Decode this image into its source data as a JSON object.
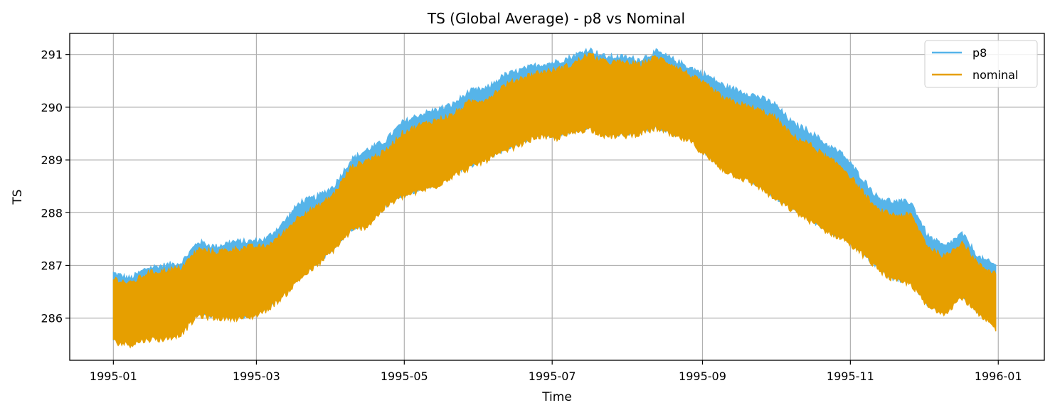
{
  "chart_data": {
    "type": "line",
    "title": "TS (Global Average) - p8 vs Nominal",
    "xlabel": "Time",
    "ylabel": "TS",
    "x_range": [
      "1994-12-14",
      "1996-01-20"
    ],
    "ylim": [
      285.2,
      291.4
    ],
    "grid": true,
    "legend_position": "top-right",
    "x_ticks": [
      {
        "date": "1995-01-01",
        "label": "1995-01"
      },
      {
        "date": "1995-03-01",
        "label": "1995-03"
      },
      {
        "date": "1995-05-01",
        "label": "1995-05"
      },
      {
        "date": "1995-07-01",
        "label": "1995-07"
      },
      {
        "date": "1995-09-01",
        "label": "1995-09"
      },
      {
        "date": "1995-11-01",
        "label": "1995-11"
      },
      {
        "date": "1996-01-01",
        "label": "1996-01"
      }
    ],
    "y_ticks": [
      {
        "value": 286,
        "label": "286"
      },
      {
        "value": 287,
        "label": "287"
      },
      {
        "value": 288,
        "label": "288"
      },
      {
        "value": 289,
        "label": "289"
      },
      {
        "value": 290,
        "label": "290"
      },
      {
        "value": 291,
        "label": "291"
      }
    ],
    "series": [
      {
        "name": "p8",
        "color": "#56B4E9",
        "note": "Diurnal envelope: upper/lower bounds at weekly samples",
        "dates": [
          "1995-01-01",
          "1995-01-08",
          "1995-01-15",
          "1995-01-22",
          "1995-01-29",
          "1995-02-05",
          "1995-02-12",
          "1995-02-19",
          "1995-02-26",
          "1995-03-05",
          "1995-03-12",
          "1995-03-19",
          "1995-03-26",
          "1995-04-02",
          "1995-04-09",
          "1995-04-16",
          "1995-04-23",
          "1995-04-30",
          "1995-05-07",
          "1995-05-14",
          "1995-05-21",
          "1995-05-28",
          "1995-06-04",
          "1995-06-11",
          "1995-06-18",
          "1995-06-25",
          "1995-07-02",
          "1995-07-09",
          "1995-07-16",
          "1995-07-23",
          "1995-07-30",
          "1995-08-06",
          "1995-08-13",
          "1995-08-20",
          "1995-08-27",
          "1995-09-03",
          "1995-09-10",
          "1995-09-17",
          "1995-09-24",
          "1995-10-01",
          "1995-10-08",
          "1995-10-15",
          "1995-10-22",
          "1995-10-29",
          "1995-11-05",
          "1995-11-12",
          "1995-11-19",
          "1995-11-26",
          "1995-12-03",
          "1995-12-10",
          "1995-12-17",
          "1995-12-24",
          "1995-12-31"
        ],
        "upper": [
          286.85,
          286.75,
          286.95,
          287.0,
          287.05,
          287.45,
          287.35,
          287.45,
          287.45,
          287.5,
          287.8,
          288.2,
          288.3,
          288.5,
          289.0,
          289.2,
          289.35,
          289.7,
          289.85,
          289.95,
          290.05,
          290.3,
          290.35,
          290.6,
          290.7,
          290.8,
          290.85,
          290.95,
          291.1,
          290.95,
          290.95,
          290.9,
          291.05,
          290.9,
          290.75,
          290.6,
          290.4,
          290.3,
          290.2,
          290.05,
          289.7,
          289.55,
          289.3,
          289.1,
          288.7,
          288.3,
          288.2,
          288.2,
          287.55,
          287.35,
          287.6,
          287.15,
          287.0
        ],
        "lower": [
          285.6,
          285.55,
          285.7,
          285.65,
          285.8,
          286.1,
          286.05,
          286.05,
          286.05,
          286.2,
          286.5,
          286.85,
          287.05,
          287.35,
          287.7,
          287.8,
          288.15,
          288.35,
          288.45,
          288.55,
          288.75,
          288.9,
          289.05,
          289.2,
          289.35,
          289.5,
          289.45,
          289.55,
          289.65,
          289.5,
          289.5,
          289.55,
          289.65,
          289.5,
          289.4,
          289.1,
          288.85,
          288.7,
          288.55,
          288.3,
          288.1,
          287.9,
          287.7,
          287.55,
          287.3,
          287.0,
          286.75,
          286.7,
          286.25,
          286.15,
          286.45,
          286.1,
          285.85
        ]
      },
      {
        "name": "nominal",
        "color": "#E69F00",
        "note": "Diurnal envelope: upper/lower bounds at weekly samples",
        "dates": [
          "1995-01-01",
          "1995-01-08",
          "1995-01-15",
          "1995-01-22",
          "1995-01-29",
          "1995-02-05",
          "1995-02-12",
          "1995-02-19",
          "1995-02-26",
          "1995-03-05",
          "1995-03-12",
          "1995-03-19",
          "1995-03-26",
          "1995-04-02",
          "1995-04-09",
          "1995-04-16",
          "1995-04-23",
          "1995-04-30",
          "1995-05-07",
          "1995-05-14",
          "1995-05-21",
          "1995-05-28",
          "1995-06-04",
          "1995-06-11",
          "1995-06-18",
          "1995-06-25",
          "1995-07-02",
          "1995-07-09",
          "1995-07-16",
          "1995-07-23",
          "1995-07-30",
          "1995-08-06",
          "1995-08-13",
          "1995-08-20",
          "1995-08-27",
          "1995-09-03",
          "1995-09-10",
          "1995-09-17",
          "1995-09-24",
          "1995-10-01",
          "1995-10-08",
          "1995-10-15",
          "1995-10-22",
          "1995-10-29",
          "1995-11-05",
          "1995-11-12",
          "1995-11-19",
          "1995-11-26",
          "1995-12-03",
          "1995-12-10",
          "1995-12-17",
          "1995-12-24",
          "1995-12-31"
        ],
        "upper": [
          286.75,
          286.65,
          286.85,
          286.9,
          286.95,
          287.3,
          287.25,
          287.3,
          287.35,
          287.35,
          287.6,
          287.95,
          288.1,
          288.35,
          288.85,
          289.0,
          289.15,
          289.5,
          289.65,
          289.75,
          289.85,
          290.1,
          290.15,
          290.4,
          290.55,
          290.65,
          290.7,
          290.8,
          291.0,
          290.85,
          290.85,
          290.8,
          290.95,
          290.8,
          290.6,
          290.4,
          290.15,
          290.05,
          289.95,
          289.8,
          289.45,
          289.3,
          289.05,
          288.85,
          288.45,
          288.05,
          287.95,
          287.95,
          287.35,
          287.15,
          287.45,
          287.0,
          286.85
        ],
        "lower": [
          285.55,
          285.5,
          285.6,
          285.6,
          285.7,
          286.05,
          286.0,
          286.0,
          286.0,
          286.15,
          286.4,
          286.75,
          287.0,
          287.3,
          287.65,
          287.75,
          288.1,
          288.3,
          288.4,
          288.5,
          288.7,
          288.85,
          289.0,
          289.15,
          289.3,
          289.45,
          289.4,
          289.5,
          289.6,
          289.45,
          289.45,
          289.5,
          289.6,
          289.45,
          289.35,
          289.05,
          288.8,
          288.65,
          288.5,
          288.25,
          288.05,
          287.85,
          287.65,
          287.5,
          287.25,
          286.95,
          286.7,
          286.65,
          286.2,
          286.1,
          286.4,
          286.05,
          285.8
        ]
      }
    ]
  }
}
